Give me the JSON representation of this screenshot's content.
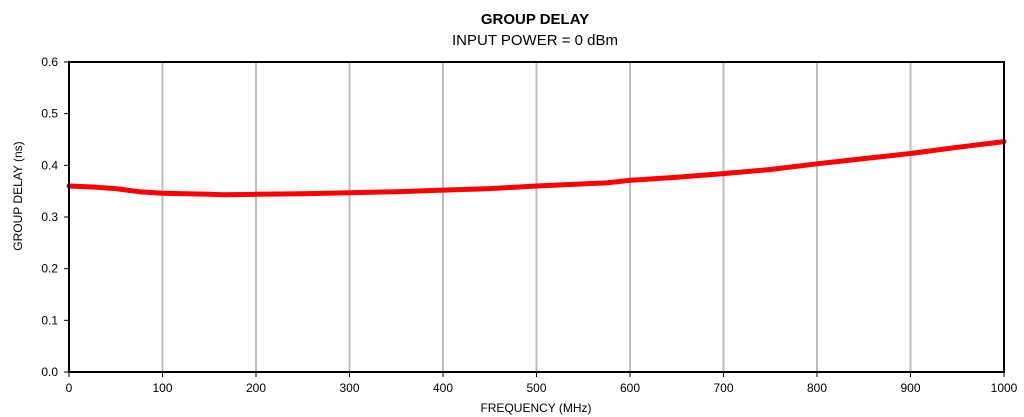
{
  "chart_data": {
    "type": "line",
    "title": "GROUP DELAY",
    "subtitle": "INPUT POWER = 0 dBm",
    "xlabel": "FREQUENCY (MHz)",
    "ylabel": "GROUP DELAY (ns)",
    "xlim": [
      0,
      1000
    ],
    "ylim": [
      0,
      0.6
    ],
    "x_ticks": [
      0,
      100,
      200,
      300,
      400,
      500,
      600,
      700,
      800,
      900,
      1000
    ],
    "y_ticks": [
      0.0,
      0.1,
      0.2,
      0.3,
      0.4,
      0.5,
      0.6
    ],
    "x_tick_labels": [
      "0",
      "100",
      "200",
      "300",
      "400",
      "500",
      "600",
      "700",
      "800",
      "900",
      "1000"
    ],
    "y_tick_labels": [
      "0.0",
      "0.1",
      "0.2",
      "0.3",
      "0.4",
      "0.5",
      "0.6"
    ],
    "grid": {
      "vertical": true,
      "horizontal": false
    },
    "series": [
      {
        "color": "#ff0000",
        "x": [
          0,
          25,
          50,
          75,
          100,
          125,
          150,
          165,
          200,
          250,
          300,
          350,
          400,
          450,
          500,
          550,
          575,
          600,
          650,
          700,
          750,
          800,
          850,
          900,
          950,
          1000
        ],
        "values": [
          0.36,
          0.358,
          0.355,
          0.349,
          0.346,
          0.345,
          0.344,
          0.343,
          0.344,
          0.345,
          0.347,
          0.349,
          0.352,
          0.355,
          0.36,
          0.364,
          0.366,
          0.371,
          0.377,
          0.384,
          0.392,
          0.403,
          0.413,
          0.423,
          0.435,
          0.446
        ]
      }
    ]
  }
}
